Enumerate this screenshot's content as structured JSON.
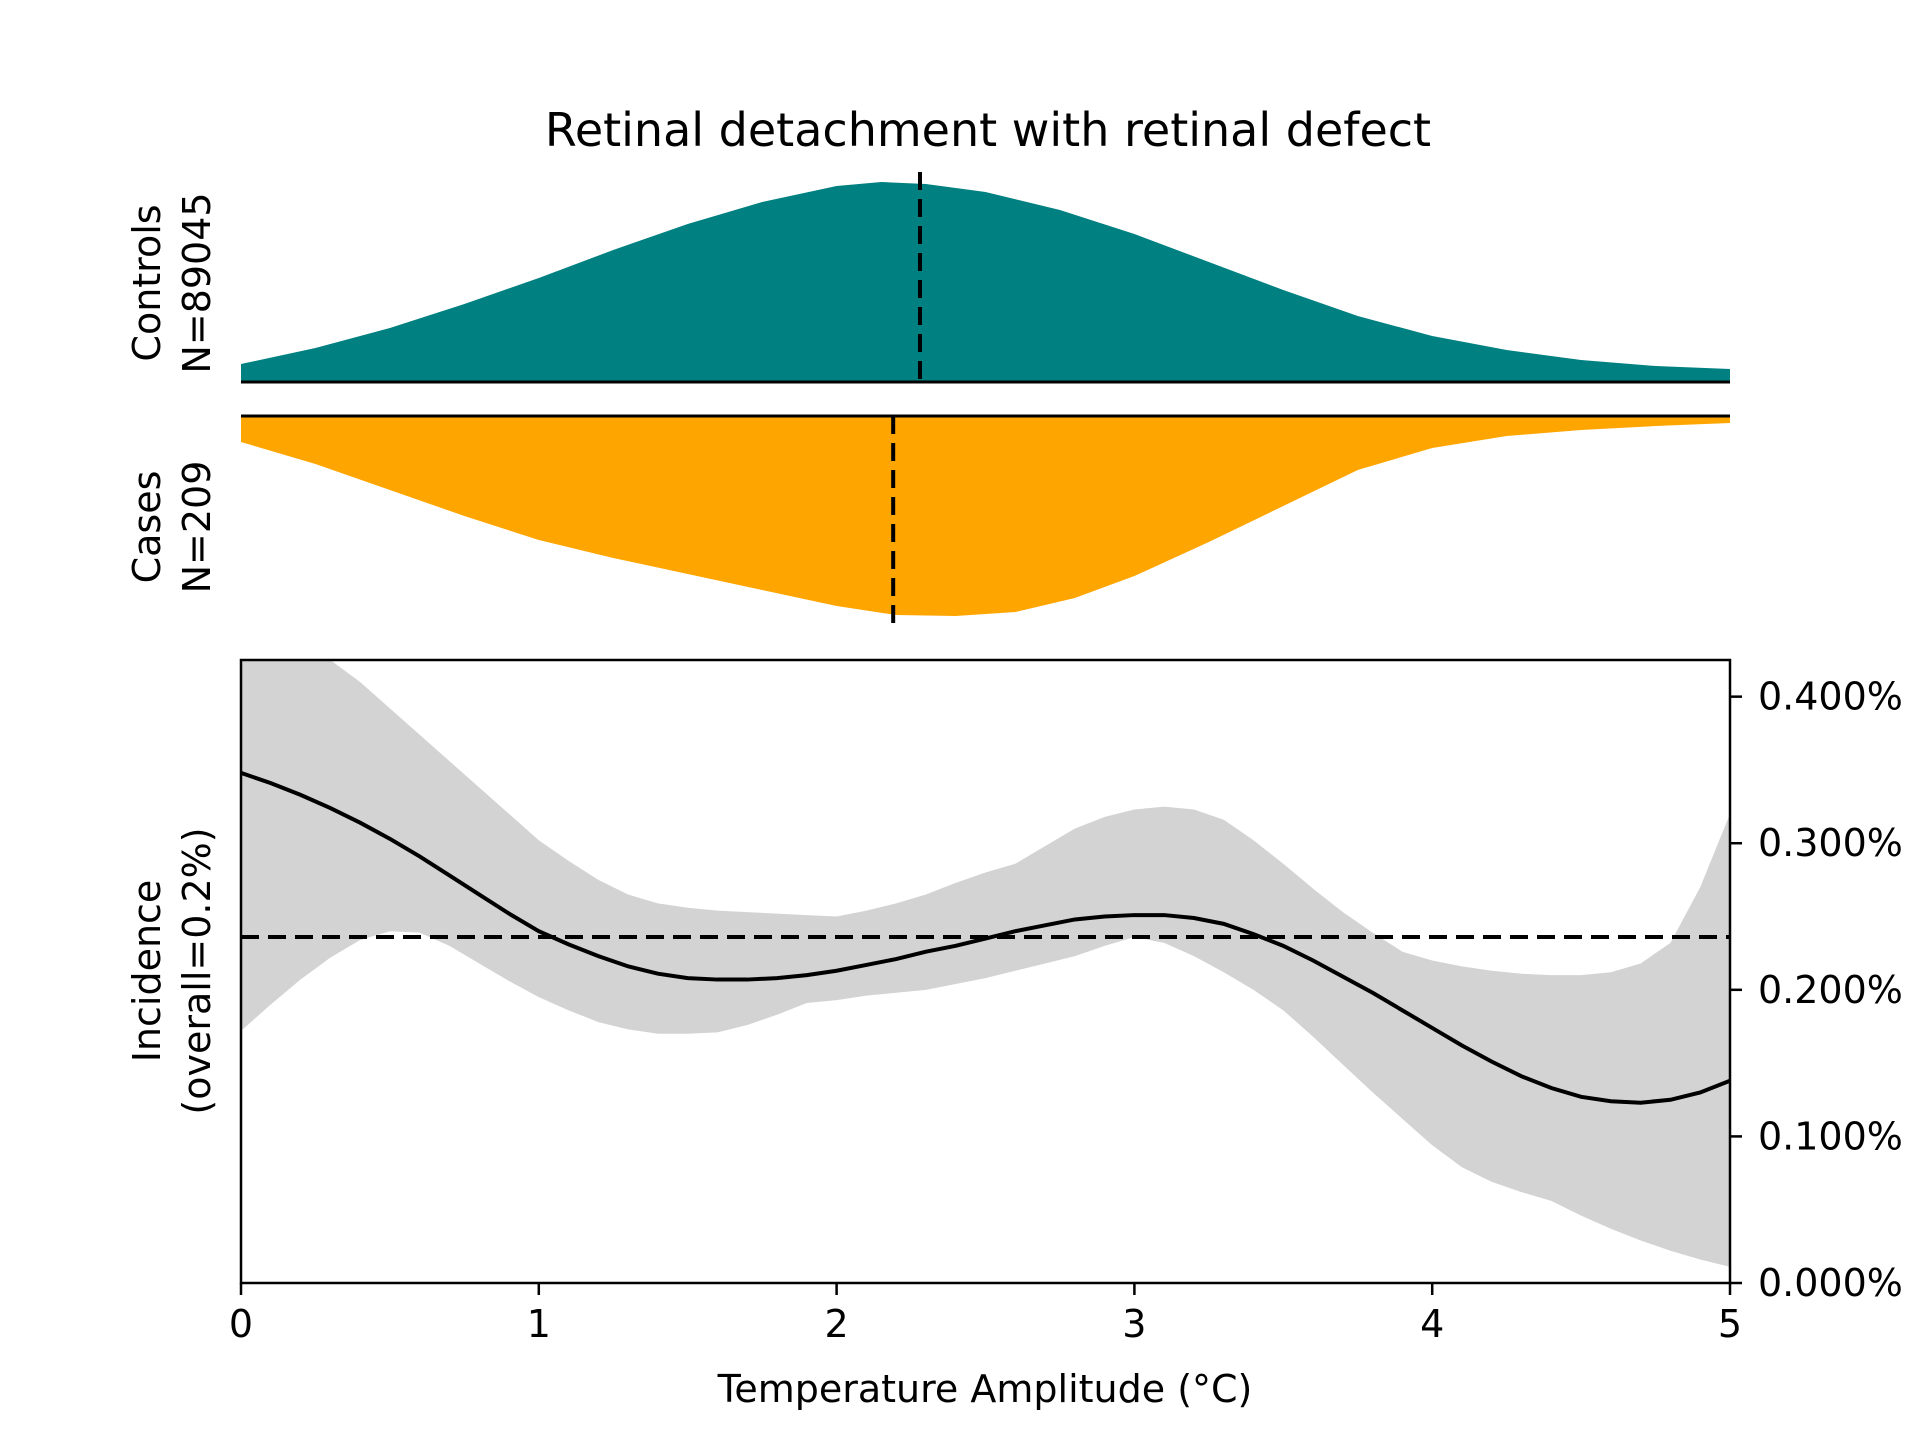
{
  "chart_data": {
    "title": "Retinal detachment with retinal defect",
    "xlabel": "Temperature Amplitude (°C)",
    "xlim": [
      0,
      5
    ],
    "x_ticks": [
      0,
      1,
      2,
      3,
      4,
      5
    ],
    "x_tick_labels": [
      "0",
      "1",
      "2",
      "3",
      "4",
      "5"
    ],
    "colors": {
      "controls": "#008080",
      "cases": "#FFA500",
      "band": "#d3d3d3",
      "line": "#000000"
    },
    "controls": {
      "type": "area",
      "label_line1": "Controls",
      "label_line2": "N=89045",
      "median": 2.28,
      "x": [
        0,
        0.25,
        0.5,
        0.75,
        1.0,
        1.25,
        1.5,
        1.75,
        2.0,
        2.15,
        2.3,
        2.5,
        2.75,
        3.0,
        3.25,
        3.5,
        3.75,
        4.0,
        4.25,
        4.5,
        4.75,
        5.0
      ],
      "density": [
        0.09,
        0.17,
        0.27,
        0.39,
        0.52,
        0.66,
        0.79,
        0.9,
        0.98,
        1.0,
        0.99,
        0.95,
        0.86,
        0.74,
        0.6,
        0.46,
        0.33,
        0.23,
        0.16,
        0.11,
        0.08,
        0.065
      ]
    },
    "cases": {
      "type": "area",
      "label_line1": "Cases",
      "label_line2": "N=209",
      "median": 2.19,
      "x": [
        0,
        0.25,
        0.5,
        0.75,
        1.0,
        1.25,
        1.5,
        1.75,
        2.0,
        2.2,
        2.4,
        2.6,
        2.8,
        3.0,
        3.25,
        3.5,
        3.75,
        4.0,
        4.25,
        4.5,
        4.75,
        5.0
      ],
      "density": [
        0.13,
        0.24,
        0.37,
        0.5,
        0.62,
        0.71,
        0.79,
        0.87,
        0.95,
        0.995,
        1.0,
        0.98,
        0.91,
        0.8,
        0.63,
        0.45,
        0.27,
        0.16,
        0.1,
        0.07,
        0.05,
        0.035
      ]
    },
    "incidence": {
      "type": "line",
      "ylabel_line1": "Incidence",
      "ylabel_line2": "(overall=0.2%)",
      "ylim": [
        0,
        0.00425
      ],
      "y_ticks": [
        0,
        0.001,
        0.002,
        0.003,
        0.004
      ],
      "y_tick_labels": [
        "0.000%",
        "0.100%",
        "0.200%",
        "0.300%",
        "0.400%"
      ],
      "overall": 0.00236,
      "x": [
        0,
        0.1,
        0.2,
        0.3,
        0.4,
        0.5,
        0.6,
        0.7,
        0.8,
        0.9,
        1.0,
        1.1,
        1.2,
        1.3,
        1.4,
        1.5,
        1.6,
        1.7,
        1.8,
        1.9,
        2.0,
        2.1,
        2.2,
        2.3,
        2.4,
        2.5,
        2.6,
        2.7,
        2.8,
        2.9,
        3.0,
        3.1,
        3.2,
        3.3,
        3.4,
        3.5,
        3.6,
        3.7,
        3.8,
        3.9,
        4.0,
        4.1,
        4.2,
        4.3,
        4.4,
        4.5,
        4.6,
        4.7,
        4.8,
        4.9,
        5.0
      ],
      "y": [
        0.00348,
        0.00341,
        0.00333,
        0.00324,
        0.00314,
        0.00303,
        0.00291,
        0.00278,
        0.00265,
        0.00252,
        0.0024,
        0.00231,
        0.00223,
        0.00216,
        0.00211,
        0.00208,
        0.00207,
        0.00207,
        0.00208,
        0.0021,
        0.00213,
        0.00217,
        0.00221,
        0.00226,
        0.0023,
        0.00235,
        0.0024,
        0.00244,
        0.00248,
        0.0025,
        0.00251,
        0.00251,
        0.00249,
        0.00245,
        0.00238,
        0.0023,
        0.0022,
        0.00209,
        0.00198,
        0.00186,
        0.00174,
        0.00162,
        0.00151,
        0.00141,
        0.00133,
        0.00127,
        0.00124,
        0.00123,
        0.00125,
        0.0013,
        0.00138
      ],
      "band_x": [
        0,
        0.1,
        0.2,
        0.3,
        0.4,
        0.5,
        0.6,
        0.7,
        0.8,
        0.9,
        1.0,
        1.1,
        1.2,
        1.3,
        1.4,
        1.5,
        1.6,
        1.7,
        1.8,
        1.9,
        2.0,
        2.1,
        2.2,
        2.3,
        2.4,
        2.5,
        2.6,
        2.7,
        2.8,
        2.9,
        3.0,
        3.1,
        3.2,
        3.3,
        3.4,
        3.5,
        3.6,
        3.7,
        3.8,
        3.9,
        4.0,
        4.1,
        4.2,
        4.3,
        4.4,
        4.5,
        4.6,
        4.7,
        4.8,
        4.9,
        5.0
      ],
      "band_upper": [
        0.0046,
        0.0045,
        0.0044,
        0.00425,
        0.0041,
        0.00392,
        0.00374,
        0.00356,
        0.00338,
        0.0032,
        0.00302,
        0.00288,
        0.00275,
        0.00265,
        0.00259,
        0.00256,
        0.00254,
        0.00253,
        0.00252,
        0.00251,
        0.0025,
        0.00254,
        0.00259,
        0.00265,
        0.00273,
        0.0028,
        0.00286,
        0.00298,
        0.0031,
        0.00318,
        0.00323,
        0.00325,
        0.00323,
        0.00316,
        0.00302,
        0.00286,
        0.00269,
        0.00253,
        0.00239,
        0.00226,
        0.0022,
        0.00216,
        0.00213,
        0.00211,
        0.0021,
        0.0021,
        0.00212,
        0.00218,
        0.00232,
        0.0027,
        0.0032
      ],
      "band_lower": [
        0.00172,
        0.0019,
        0.00207,
        0.00222,
        0.00234,
        0.0024,
        0.00239,
        0.0023,
        0.00218,
        0.00206,
        0.00195,
        0.00186,
        0.00178,
        0.00173,
        0.0017,
        0.0017,
        0.00171,
        0.00176,
        0.00183,
        0.00191,
        0.00193,
        0.00196,
        0.00198,
        0.002,
        0.00204,
        0.00208,
        0.00213,
        0.00218,
        0.00223,
        0.0023,
        0.00236,
        0.00232,
        0.00223,
        0.00212,
        0.002,
        0.00186,
        0.00168,
        0.00149,
        0.0013,
        0.00112,
        0.00094,
        0.00079,
        0.00069,
        0.00062,
        0.00056,
        0.00046,
        0.00037,
        0.00029,
        0.00022,
        0.00016,
        0.00011
      ]
    }
  }
}
